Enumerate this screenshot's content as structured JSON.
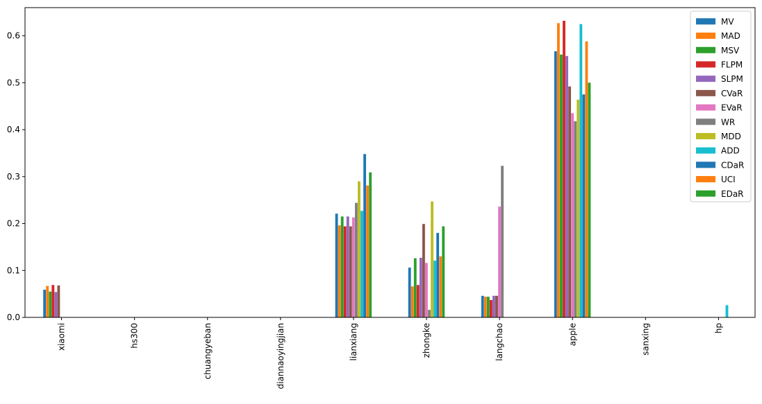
{
  "chart_data": {
    "type": "bar",
    "title": "",
    "xlabel": "",
    "ylabel": "",
    "ylim": [
      0,
      0.66
    ],
    "grid": false,
    "legend_position": "top-right",
    "yticks": [
      "0.0",
      "0.1",
      "0.2",
      "0.3",
      "0.4",
      "0.5",
      "0.6"
    ],
    "categories": [
      "xiaomi",
      "hs300",
      "chuangyeban",
      "diannaoyingjian",
      "lianxiang",
      "zhongke",
      "langchao",
      "apple",
      "sanxing",
      "hp"
    ],
    "series": [
      {
        "name": "MV",
        "color": "#1f77b4",
        "values": [
          0.059,
          0,
          0,
          0,
          0.221,
          0.106,
          0.046,
          0.567,
          0,
          0
        ]
      },
      {
        "name": "MAD",
        "color": "#ff7f0e",
        "values": [
          0.067,
          0,
          0,
          0,
          0.196,
          0.066,
          0.044,
          0.627,
          0,
          0
        ]
      },
      {
        "name": "MSV",
        "color": "#2ca02c",
        "values": [
          0.055,
          0,
          0,
          0,
          0.215,
          0.126,
          0.044,
          0.56,
          0,
          0
        ]
      },
      {
        "name": "FLPM",
        "color": "#d62728",
        "values": [
          0.069,
          0,
          0,
          0,
          0.194,
          0.069,
          0.037,
          0.632,
          0,
          0
        ]
      },
      {
        "name": "SLPM",
        "color": "#9467bd",
        "values": [
          0.054,
          0,
          0,
          0,
          0.215,
          0.127,
          0.046,
          0.557,
          0,
          0
        ]
      },
      {
        "name": "CVaR",
        "color": "#8c564b",
        "values": [
          0.068,
          0,
          0,
          0,
          0.194,
          0.199,
          0.046,
          0.492,
          0,
          0
        ]
      },
      {
        "name": "EVaR",
        "color": "#e377c2",
        "values": [
          0,
          0,
          0,
          0,
          0.213,
          0.116,
          0.236,
          0.435,
          0,
          0
        ]
      },
      {
        "name": "WR",
        "color": "#7f7f7f",
        "values": [
          0,
          0,
          0,
          0,
          0.244,
          0.016,
          0.323,
          0.418,
          0,
          0
        ]
      },
      {
        "name": "MDD",
        "color": "#bcbd22",
        "values": [
          0,
          0,
          0,
          0,
          0.29,
          0.247,
          0,
          0.464,
          0,
          0
        ]
      },
      {
        "name": "ADD",
        "color": "#17becf",
        "values": [
          0,
          0,
          0,
          0,
          0.227,
          0.121,
          0,
          0.625,
          0,
          0.026
        ]
      },
      {
        "name": "CDaR",
        "color": "#1f77b4",
        "values": [
          0,
          0,
          0,
          0,
          0.348,
          0.18,
          0,
          0.475,
          0,
          0
        ]
      },
      {
        "name": "UCI",
        "color": "#ff7f0e",
        "values": [
          0,
          0,
          0,
          0,
          0.281,
          0.13,
          0,
          0.588,
          0,
          0
        ]
      },
      {
        "name": "EDaR",
        "color": "#2ca02c",
        "values": [
          0,
          0,
          0,
          0,
          0.309,
          0.194,
          0,
          0.5,
          0,
          0
        ]
      }
    ]
  }
}
